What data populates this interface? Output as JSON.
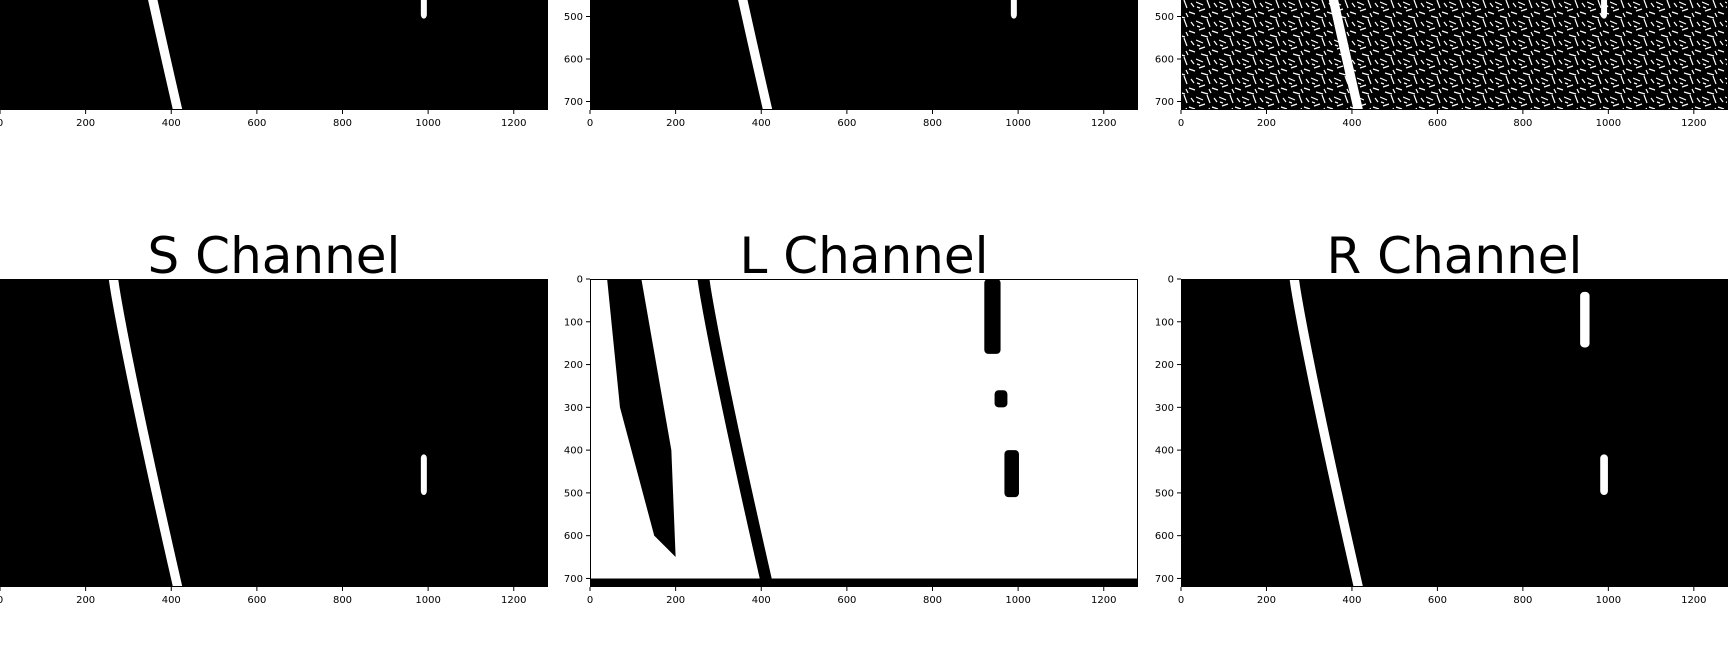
{
  "chart_data": [
    {
      "type": "heatmap",
      "title": "",
      "xlim": [
        0,
        1280
      ],
      "ylim": [
        720,
        0
      ],
      "x_ticks": [
        "0",
        "200",
        "400",
        "600",
        "800",
        "1000",
        "1200"
      ],
      "y_ticks": [],
      "colormap": "binary (black = 0, white = 1)"
    },
    {
      "type": "heatmap",
      "title": "",
      "xlim": [
        0,
        1280
      ],
      "ylim": [
        720,
        0
      ],
      "x_ticks": [
        "0",
        "200",
        "400",
        "600",
        "800",
        "1000",
        "1200"
      ],
      "y_ticks": [
        "500",
        "600",
        "700"
      ],
      "colormap": "binary (black = 0, white = 1)"
    },
    {
      "type": "heatmap",
      "title": "",
      "xlim": [
        0,
        1280
      ],
      "ylim": [
        720,
        0
      ],
      "x_ticks": [
        "0",
        "200",
        "400",
        "600",
        "800",
        "1000",
        "1200"
      ],
      "y_ticks": [
        "500",
        "600",
        "700"
      ],
      "colormap": "binary (black = 0, white = 1)"
    },
    {
      "type": "heatmap",
      "title": "S Channel",
      "xlim": [
        0,
        1280
      ],
      "ylim": [
        720,
        0
      ],
      "x_ticks": [
        "0",
        "200",
        "400",
        "600",
        "800",
        "1000",
        "1200"
      ],
      "y_ticks": [],
      "colormap": "binary (black = 0, white = 1)"
    },
    {
      "type": "heatmap",
      "title": "L Channel",
      "xlim": [
        0,
        1280
      ],
      "ylim": [
        720,
        0
      ],
      "x_ticks": [
        "0",
        "200",
        "400",
        "600",
        "800",
        "1000",
        "1200"
      ],
      "y_ticks": [
        "0",
        "100",
        "200",
        "300",
        "400",
        "500",
        "600",
        "700"
      ],
      "colormap": "binary (black = 0, white = 1)"
    },
    {
      "type": "heatmap",
      "title": "R Channel",
      "xlim": [
        0,
        1280
      ],
      "ylim": [
        720,
        0
      ],
      "x_ticks": [
        "0",
        "200",
        "400",
        "600",
        "800",
        "1000",
        "1200"
      ],
      "y_ticks": [
        "0",
        "100",
        "200",
        "300",
        "400",
        "500",
        "600",
        "700"
      ],
      "colormap": "binary (black = 0, white = 1)"
    }
  ]
}
